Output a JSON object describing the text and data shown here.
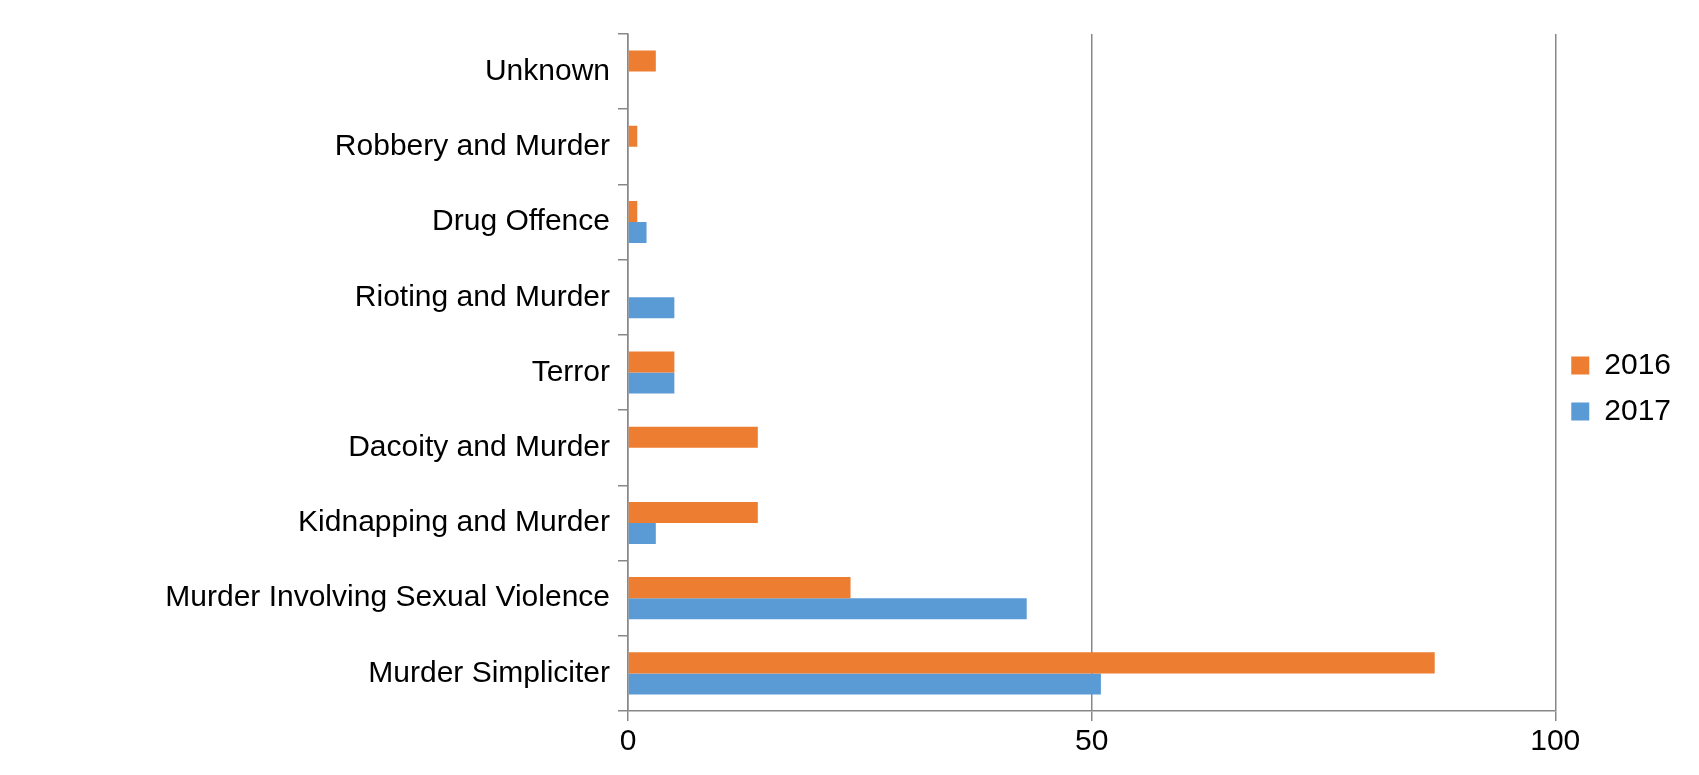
{
  "chart_data": {
    "type": "bar",
    "orientation": "horizontal",
    "categories": [
      "Unknown",
      "Robbery and Murder",
      "Drug Offence",
      "Rioting and Murder",
      "Terror",
      "Dacoity and Murder",
      "Kidnapping and Murder",
      "Murder Involving Sexual Violence",
      "Murder Simpliciter"
    ],
    "series": [
      {
        "name": "2016",
        "color": "#ed7d31",
        "values": [
          3,
          1,
          1,
          null,
          5,
          14,
          14,
          24,
          87
        ]
      },
      {
        "name": "2017",
        "color": "#5b9bd5",
        "values": [
          null,
          null,
          2,
          5,
          5,
          null,
          3,
          43,
          51
        ]
      }
    ],
    "xlim": [
      0,
      100
    ],
    "xticks": [
      0,
      50,
      100
    ],
    "grid": "x",
    "legend": "right"
  }
}
